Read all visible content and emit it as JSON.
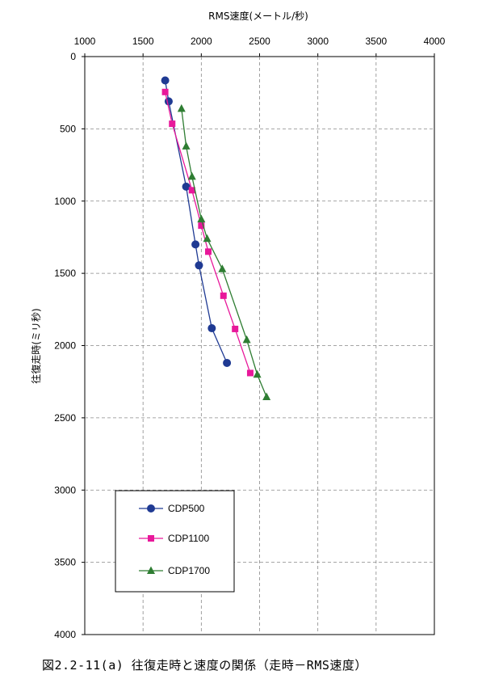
{
  "caption": "図2.2-11(a) 往復走時と速度の関係（走時－RMS速度）",
  "chart_data": {
    "type": "line",
    "x_axis_label": "RMS速度(メートル/秒)",
    "y_axis_label": "往復走時(ミリ秒)",
    "x_ticks": [
      "1000",
      "1500",
      "2000",
      "2500",
      "3000",
      "3500",
      "4000"
    ],
    "y_ticks": [
      "0",
      "500",
      "1000",
      "1500",
      "2000",
      "2500",
      "3000",
      "3500",
      "4000"
    ],
    "xlim": [
      1000,
      4000
    ],
    "ylim": [
      0,
      4000
    ],
    "x_axis_position": "top",
    "y_inverted": true,
    "grid": true,
    "legend_position": "bottom-left",
    "series": [
      {
        "name": "CDP500",
        "color": "#1f3a93",
        "marker": "circle",
        "points": [
          [
            1690,
            165
          ],
          [
            1720,
            310
          ],
          [
            1870,
            900
          ],
          [
            1950,
            1300
          ],
          [
            1980,
            1445
          ],
          [
            2090,
            1880
          ],
          [
            2220,
            2120
          ]
        ]
      },
      {
        "name": "CDP1100",
        "color": "#e8189a",
        "marker": "square",
        "points": [
          [
            1690,
            245
          ],
          [
            1750,
            465
          ],
          [
            1920,
            925
          ],
          [
            2000,
            1170
          ],
          [
            2060,
            1350
          ],
          [
            2190,
            1655
          ],
          [
            2290,
            1885
          ],
          [
            2420,
            2190
          ]
        ]
      },
      {
        "name": "CDP1700",
        "color": "#2e7d32",
        "marker": "triangle",
        "points": [
          [
            1830,
            360
          ],
          [
            1870,
            620
          ],
          [
            1920,
            830
          ],
          [
            2000,
            1125
          ],
          [
            2050,
            1260
          ],
          [
            2180,
            1470
          ],
          [
            2390,
            1960
          ],
          [
            2480,
            2200
          ],
          [
            2560,
            2355
          ]
        ]
      }
    ]
  }
}
